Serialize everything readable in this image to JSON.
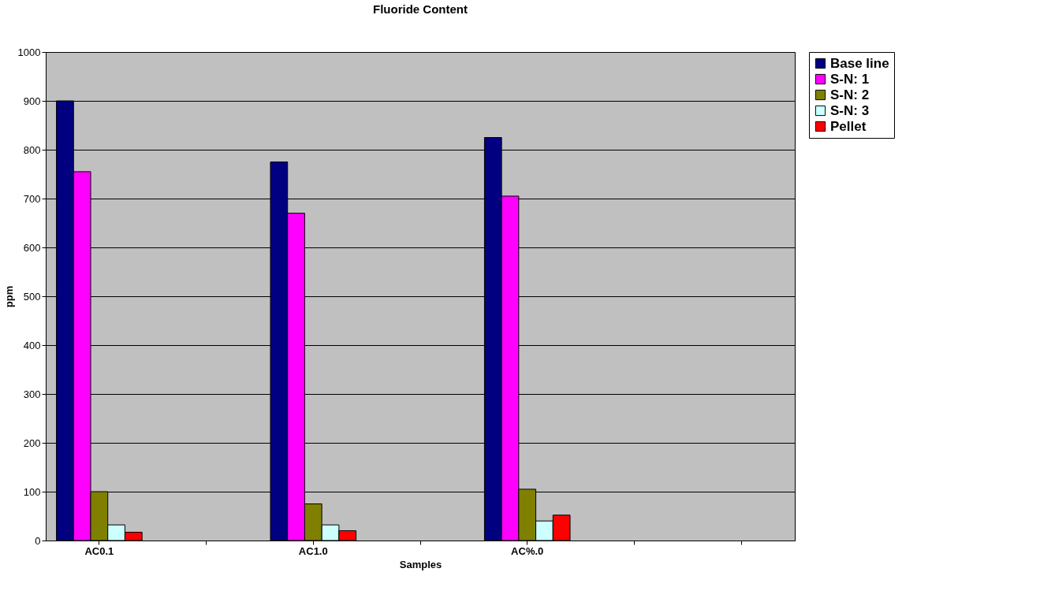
{
  "chart_data": {
    "type": "bar",
    "title": "Fluoride Content",
    "xlabel": "Samples",
    "ylabel": "ppm",
    "categories": [
      "AC0.1",
      null,
      "AC1.0",
      null,
      "AC%.0",
      null,
      null
    ],
    "series": [
      {
        "name": "Base line",
        "color": "#000080",
        "values": [
          900,
          null,
          775,
          null,
          825,
          null,
          null
        ]
      },
      {
        "name": "S-N: 1",
        "color": "#ff00ff",
        "values": [
          755,
          null,
          670,
          null,
          705,
          null,
          null
        ]
      },
      {
        "name": "S-N: 2",
        "color": "#808000",
        "values": [
          100,
          null,
          75,
          null,
          105,
          null,
          null
        ]
      },
      {
        "name": "S-N: 3",
        "color": "#ccffff",
        "values": [
          32,
          null,
          32,
          null,
          40,
          null,
          null
        ]
      },
      {
        "name": "Pellet",
        "color": "#ff0000",
        "values": [
          17,
          null,
          20,
          null,
          52,
          null,
          null
        ]
      }
    ],
    "ylim": [
      0,
      1000
    ],
    "yticks": [
      0,
      100,
      200,
      300,
      400,
      500,
      600,
      700,
      800,
      900,
      1000
    ],
    "grid": "y",
    "legend": "right"
  }
}
